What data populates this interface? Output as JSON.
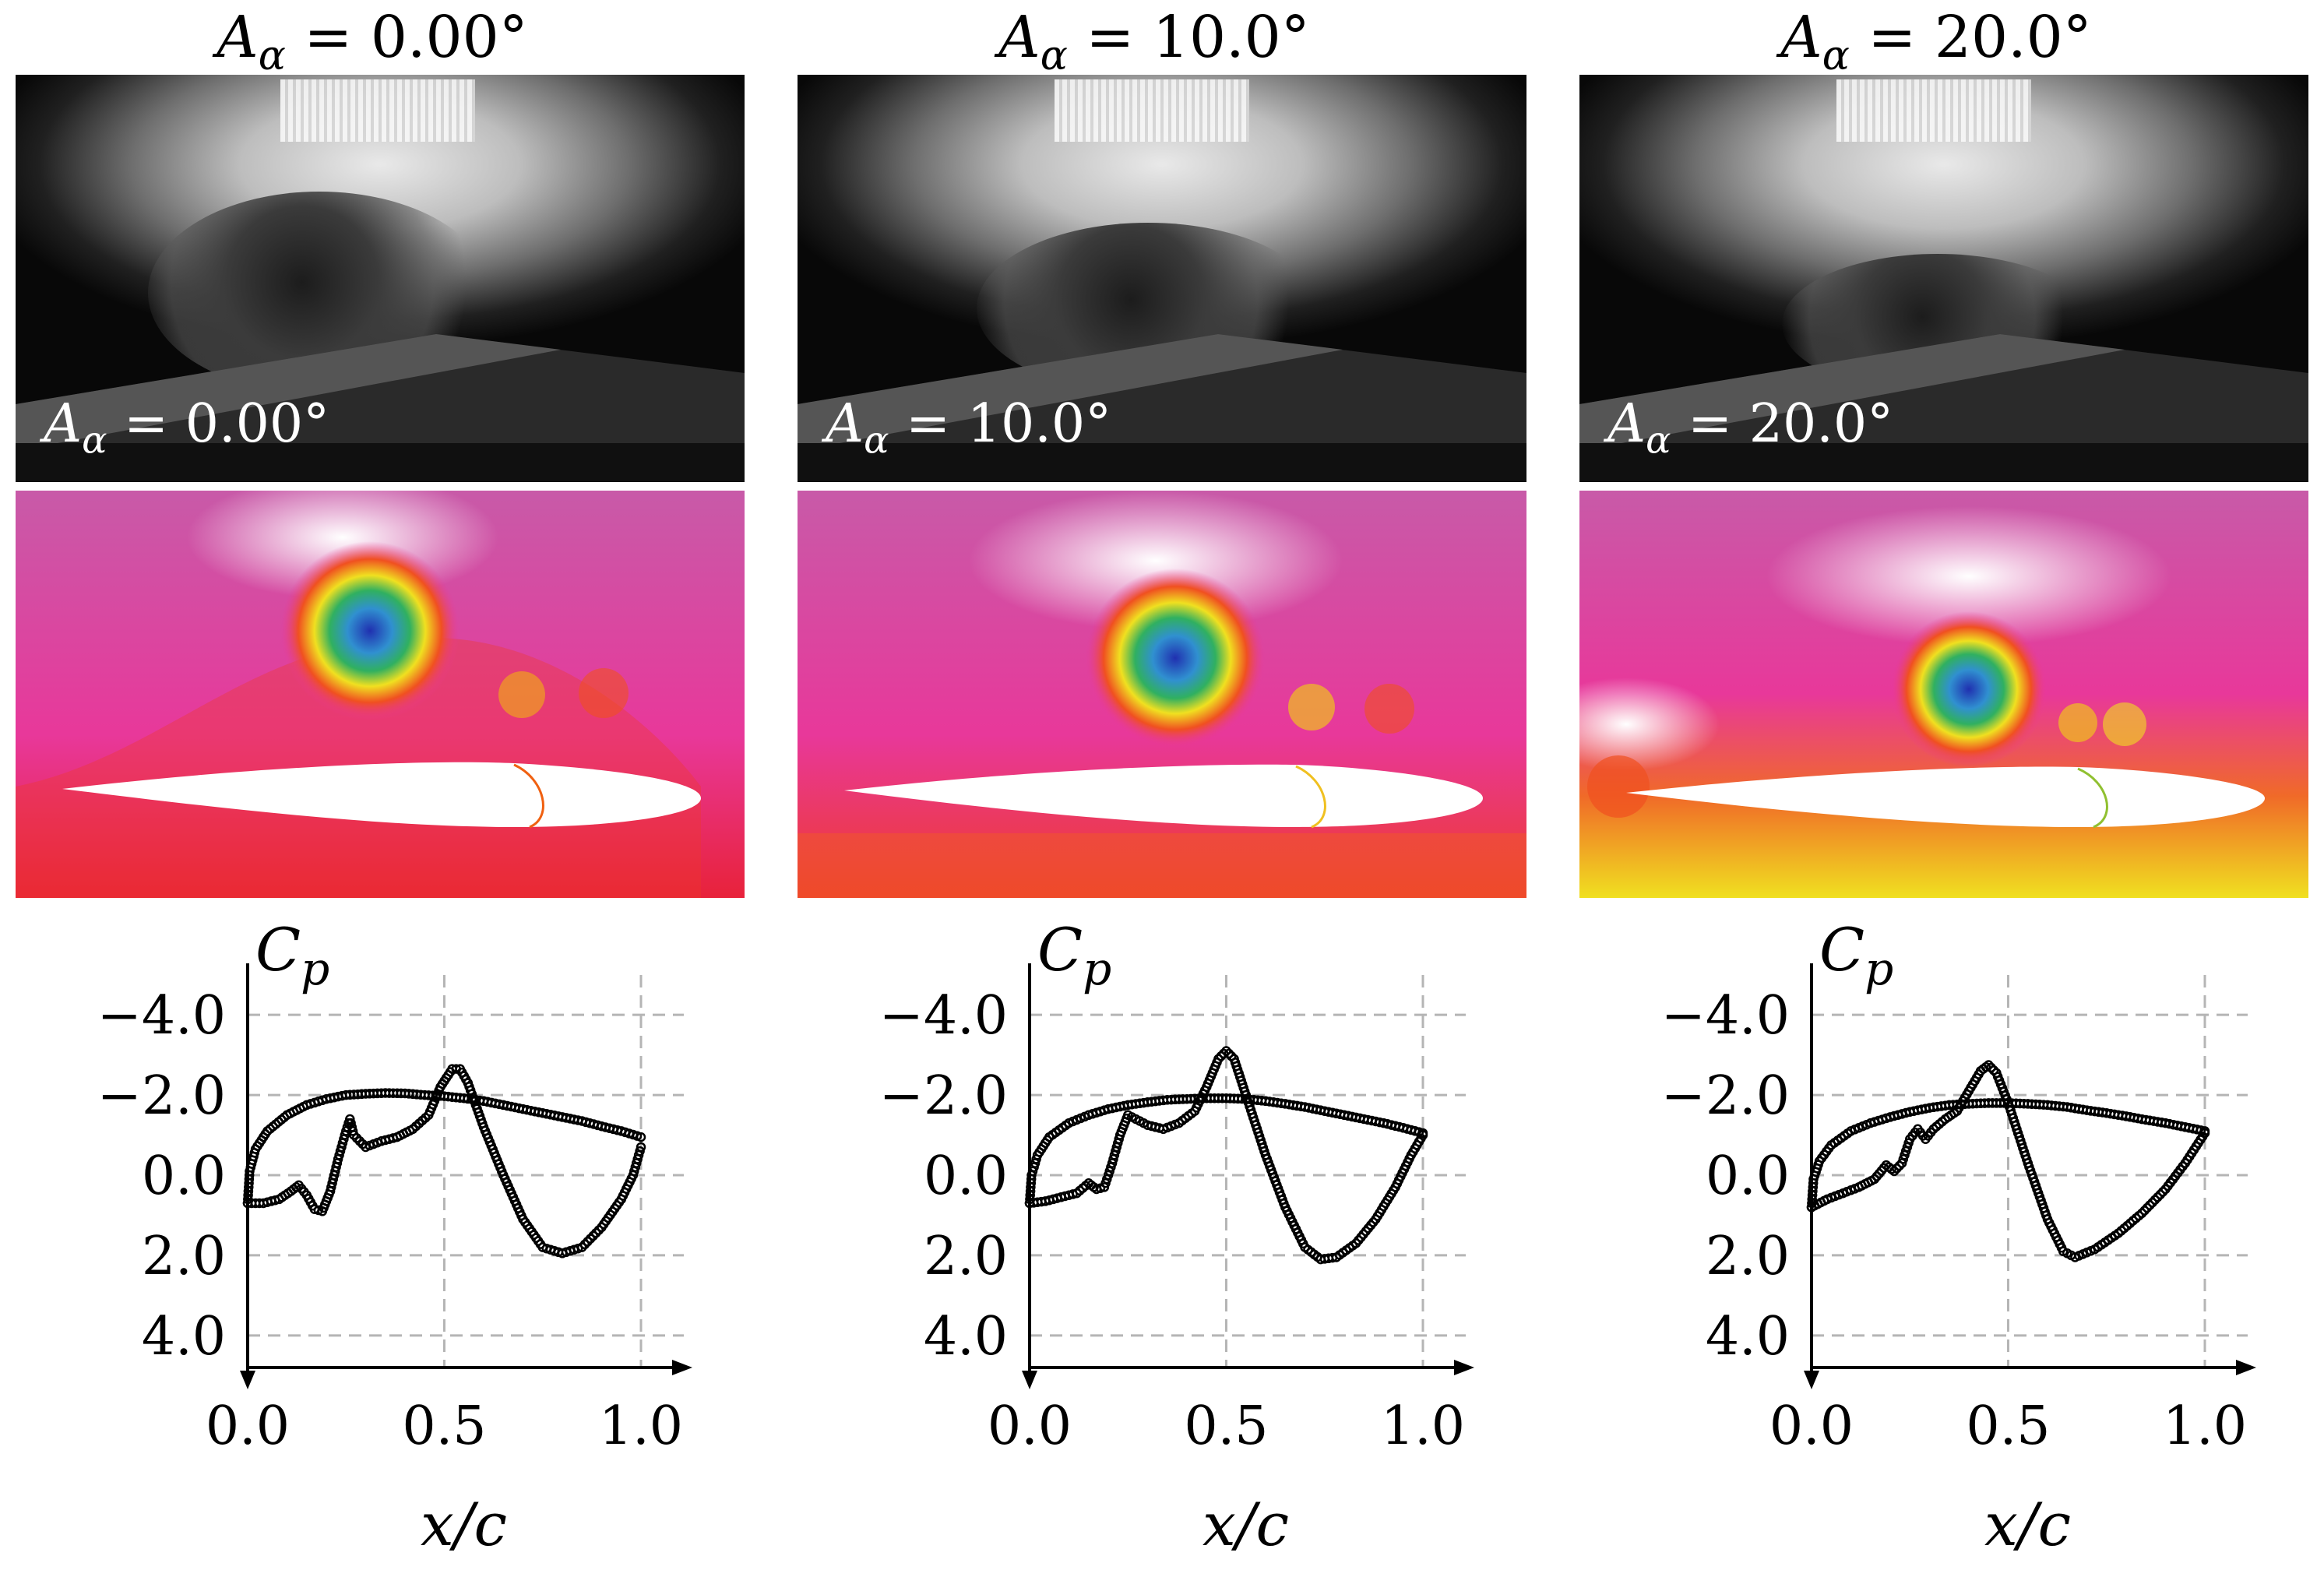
{
  "panels": [
    {
      "title": "A_α = 0.00°",
      "title_sym": "A",
      "title_sub": "α",
      "title_val": " = 0.00°",
      "photo_caption_val": " = 0.00°",
      "field_colors": {
        "top": "#c85aa8",
        "bottom": "#e8223a",
        "surface": "#ee3a24",
        "outline": "#f06010"
      }
    },
    {
      "title": "A_α = 10.0°",
      "title_sym": "A",
      "title_sub": "α",
      "title_val": " = 10.0°",
      "photo_caption_val": " = 10.0°",
      "field_colors": {
        "top": "#c85aa8",
        "bottom": "#ee3a2a",
        "surface": "#f5a020",
        "outline": "#f0c020"
      }
    },
    {
      "title": "A_α = 20.0°",
      "title_sym": "A",
      "title_sub": "α",
      "title_val": " = 20.0°",
      "photo_caption_val": " = 20.0°",
      "field_colors": {
        "top": "#c85aa8",
        "bottom": "#f0e020",
        "surface": "#a8d030",
        "outline": "#90c030"
      }
    }
  ],
  "chart_data": [
    {
      "type": "scatter",
      "ylabel": "C_p",
      "xlabel": "x/c",
      "xlim": [
        0.0,
        1.0
      ],
      "ylim": [
        -4.8,
        4.8
      ],
      "y_inverted": true,
      "xticks": [
        "0.0",
        "0.5",
        "1.0"
      ],
      "yticks": [
        "−4.0",
        "−2.0",
        "0.0",
        "2.0",
        "4.0"
      ],
      "ytick_values": [
        -4.0,
        -2.0,
        0.0,
        2.0,
        4.0
      ],
      "xtick_values": [
        0.0,
        0.5,
        1.0
      ],
      "grid": "dashed",
      "series": [
        {
          "values": [
            [
              0.0,
              0.7
            ],
            [
              0.005,
              -0.1
            ],
            [
              0.02,
              -0.65
            ],
            [
              0.05,
              -1.1
            ],
            [
              0.1,
              -1.5
            ],
            [
              0.15,
              -1.75
            ],
            [
              0.2,
              -1.9
            ],
            [
              0.25,
              -2.0
            ],
            [
              0.3,
              -2.03
            ],
            [
              0.35,
              -2.05
            ],
            [
              0.4,
              -2.04
            ],
            [
              0.45,
              -2.0
            ],
            [
              0.5,
              -1.97
            ],
            [
              0.55,
              -1.92
            ],
            [
              0.6,
              -1.85
            ],
            [
              0.65,
              -1.75
            ],
            [
              0.7,
              -1.65
            ],
            [
              0.75,
              -1.55
            ],
            [
              0.8,
              -1.45
            ],
            [
              0.85,
              -1.35
            ],
            [
              0.9,
              -1.22
            ],
            [
              0.95,
              -1.1
            ],
            [
              1.0,
              -0.95
            ]
          ]
        },
        {
          "values": [
            [
              0.0,
              0.7
            ],
            [
              0.04,
              0.7
            ],
            [
              0.08,
              0.6
            ],
            [
              0.11,
              0.4
            ],
            [
              0.13,
              0.25
            ],
            [
              0.15,
              0.5
            ],
            [
              0.17,
              0.85
            ],
            [
              0.19,
              0.9
            ],
            [
              0.21,
              0.4
            ],
            [
              0.23,
              -0.4
            ],
            [
              0.25,
              -1.1
            ],
            [
              0.26,
              -1.4
            ],
            [
              0.27,
              -1.0
            ],
            [
              0.3,
              -0.7
            ],
            [
              0.34,
              -0.85
            ],
            [
              0.38,
              -0.95
            ],
            [
              0.42,
              -1.15
            ],
            [
              0.46,
              -1.5
            ],
            [
              0.49,
              -2.2
            ],
            [
              0.52,
              -2.65
            ],
            [
              0.54,
              -2.65
            ],
            [
              0.56,
              -2.3
            ],
            [
              0.6,
              -1.2
            ],
            [
              0.65,
              0.0
            ],
            [
              0.7,
              1.1
            ],
            [
              0.75,
              1.8
            ],
            [
              0.8,
              1.95
            ],
            [
              0.85,
              1.8
            ],
            [
              0.9,
              1.3
            ],
            [
              0.95,
              0.6
            ],
            [
              0.98,
              0.0
            ],
            [
              1.0,
              -0.7
            ]
          ]
        }
      ]
    },
    {
      "type": "scatter",
      "ylabel": "C_p",
      "xlabel": "x/c",
      "xlim": [
        0.0,
        1.0
      ],
      "ylim": [
        -4.8,
        4.8
      ],
      "y_inverted": true,
      "xticks": [
        "0.0",
        "0.5",
        "1.0"
      ],
      "yticks": [
        "−4.0",
        "−2.0",
        "0.0",
        "2.0",
        "4.0"
      ],
      "ytick_values": [
        -4.0,
        -2.0,
        0.0,
        2.0,
        4.0
      ],
      "xtick_values": [
        0.0,
        0.5,
        1.0
      ],
      "grid": "dashed",
      "series": [
        {
          "values": [
            [
              0.0,
              0.7
            ],
            [
              0.005,
              0.0
            ],
            [
              0.02,
              -0.5
            ],
            [
              0.05,
              -0.95
            ],
            [
              0.1,
              -1.3
            ],
            [
              0.15,
              -1.5
            ],
            [
              0.2,
              -1.65
            ],
            [
              0.25,
              -1.75
            ],
            [
              0.3,
              -1.82
            ],
            [
              0.35,
              -1.88
            ],
            [
              0.4,
              -1.9
            ],
            [
              0.45,
              -1.92
            ],
            [
              0.5,
              -1.92
            ],
            [
              0.55,
              -1.9
            ],
            [
              0.6,
              -1.85
            ],
            [
              0.65,
              -1.78
            ],
            [
              0.7,
              -1.7
            ],
            [
              0.75,
              -1.6
            ],
            [
              0.8,
              -1.5
            ],
            [
              0.85,
              -1.4
            ],
            [
              0.9,
              -1.3
            ],
            [
              0.95,
              -1.18
            ],
            [
              1.0,
              -1.05
            ]
          ]
        },
        {
          "values": [
            [
              0.0,
              0.7
            ],
            [
              0.04,
              0.65
            ],
            [
              0.08,
              0.55
            ],
            [
              0.12,
              0.45
            ],
            [
              0.15,
              0.2
            ],
            [
              0.17,
              0.35
            ],
            [
              0.19,
              0.3
            ],
            [
              0.21,
              -0.3
            ],
            [
              0.23,
              -1.0
            ],
            [
              0.25,
              -1.5
            ],
            [
              0.27,
              -1.4
            ],
            [
              0.3,
              -1.25
            ],
            [
              0.34,
              -1.15
            ],
            [
              0.38,
              -1.3
            ],
            [
              0.42,
              -1.6
            ],
            [
              0.45,
              -2.2
            ],
            [
              0.48,
              -2.9
            ],
            [
              0.5,
              -3.1
            ],
            [
              0.52,
              -2.9
            ],
            [
              0.55,
              -2.0
            ],
            [
              0.6,
              -0.5
            ],
            [
              0.65,
              0.8
            ],
            [
              0.7,
              1.8
            ],
            [
              0.74,
              2.1
            ],
            [
              0.78,
              2.05
            ],
            [
              0.83,
              1.7
            ],
            [
              0.88,
              1.1
            ],
            [
              0.93,
              0.3
            ],
            [
              0.97,
              -0.5
            ],
            [
              1.0,
              -1.0
            ]
          ]
        }
      ]
    },
    {
      "type": "scatter",
      "ylabel": "C_p",
      "xlabel": "x/c",
      "xlim": [
        0.0,
        1.0
      ],
      "ylim": [
        -4.8,
        4.8
      ],
      "y_inverted": true,
      "xticks": [
        "0.0",
        "0.5",
        "1.0"
      ],
      "yticks": [
        "−4.0",
        "−2.0",
        "0.0",
        "2.0",
        "4.0"
      ],
      "ytick_values": [
        -4.0,
        -2.0,
        0.0,
        2.0,
        4.0
      ],
      "xtick_values": [
        0.0,
        0.5,
        1.0
      ],
      "grid": "dashed",
      "series": [
        {
          "values": [
            [
              0.0,
              0.8
            ],
            [
              0.005,
              0.1
            ],
            [
              0.02,
              -0.35
            ],
            [
              0.05,
              -0.75
            ],
            [
              0.1,
              -1.1
            ],
            [
              0.15,
              -1.3
            ],
            [
              0.2,
              -1.45
            ],
            [
              0.25,
              -1.58
            ],
            [
              0.3,
              -1.68
            ],
            [
              0.35,
              -1.75
            ],
            [
              0.4,
              -1.78
            ],
            [
              0.45,
              -1.8
            ],
            [
              0.5,
              -1.8
            ],
            [
              0.55,
              -1.78
            ],
            [
              0.6,
              -1.75
            ],
            [
              0.65,
              -1.7
            ],
            [
              0.7,
              -1.62
            ],
            [
              0.75,
              -1.55
            ],
            [
              0.8,
              -1.47
            ],
            [
              0.85,
              -1.38
            ],
            [
              0.9,
              -1.3
            ],
            [
              0.95,
              -1.2
            ],
            [
              1.0,
              -1.1
            ]
          ]
        },
        {
          "values": [
            [
              0.0,
              0.8
            ],
            [
              0.04,
              0.6
            ],
            [
              0.08,
              0.45
            ],
            [
              0.12,
              0.3
            ],
            [
              0.16,
              0.1
            ],
            [
              0.19,
              -0.25
            ],
            [
              0.21,
              -0.1
            ],
            [
              0.23,
              -0.3
            ],
            [
              0.25,
              -0.9
            ],
            [
              0.27,
              -1.15
            ],
            [
              0.29,
              -0.9
            ],
            [
              0.31,
              -1.15
            ],
            [
              0.34,
              -1.4
            ],
            [
              0.37,
              -1.6
            ],
            [
              0.4,
              -2.1
            ],
            [
              0.43,
              -2.6
            ],
            [
              0.45,
              -2.75
            ],
            [
              0.47,
              -2.55
            ],
            [
              0.5,
              -1.8
            ],
            [
              0.55,
              -0.3
            ],
            [
              0.6,
              1.1
            ],
            [
              0.64,
              1.9
            ],
            [
              0.67,
              2.05
            ],
            [
              0.72,
              1.85
            ],
            [
              0.78,
              1.45
            ],
            [
              0.84,
              0.95
            ],
            [
              0.9,
              0.35
            ],
            [
              0.95,
              -0.3
            ],
            [
              1.0,
              -1.05
            ]
          ]
        }
      ]
    }
  ]
}
